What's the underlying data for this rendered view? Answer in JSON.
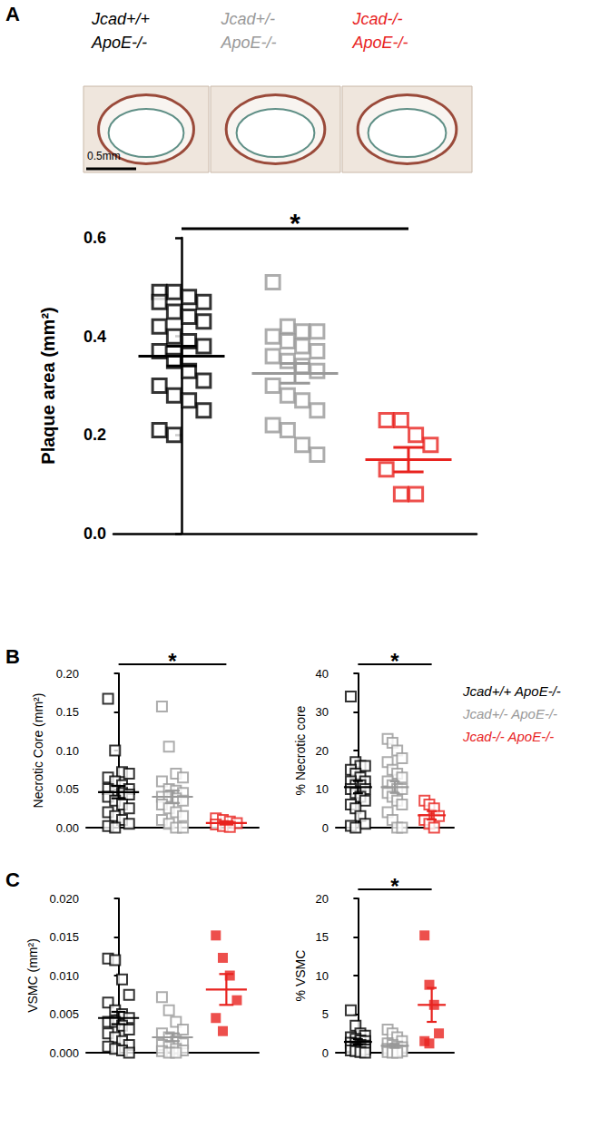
{
  "figure": {
    "panels": [
      "A",
      "B",
      "C"
    ],
    "scale_bar": "0.5mm"
  },
  "chart_data": [
    {
      "type": "scatter",
      "ylabel": "Plaque area (mm²)",
      "ylim": [
        0,
        0.6
      ],
      "yticks": [
        {
          "value": 0,
          "label": "0.0"
        },
        0.2,
        0.4,
        0.6
      ],
      "tick_labels": "y",
      "significance": [
        {
          "from": 0,
          "to": 2,
          "label": "*"
        }
      ],
      "series": [
        {
          "name": "Jcad+/+ ApoE-/-",
          "color": "#000000",
          "marker": "square",
          "values": [
            0.49,
            0.49,
            0.48,
            0.47,
            0.47,
            0.45,
            0.44,
            0.43,
            0.42,
            0.4,
            0.39,
            0.38,
            0.37,
            0.35,
            0.33,
            0.31,
            0.3,
            0.28,
            0.27,
            0.25,
            0.21,
            0.2
          ],
          "mean": 0.36,
          "sem": 0.02
        },
        {
          "name": "Jcad+/- ApoE-/-",
          "color": "#999999",
          "marker": "square",
          "values": [
            0.51,
            0.42,
            0.41,
            0.41,
            0.4,
            0.39,
            0.38,
            0.37,
            0.36,
            0.35,
            0.34,
            0.33,
            0.3,
            0.28,
            0.27,
            0.25,
            0.22,
            0.21,
            0.18,
            0.16
          ],
          "mean": 0.325,
          "sem": 0.02
        },
        {
          "name": "Jcad-/- ApoE-/-",
          "color": "#e8231f",
          "marker": "square",
          "values": [
            0.23,
            0.23,
            0.2,
            0.18,
            0.13,
            0.08,
            0.08
          ],
          "mean": 0.15,
          "sem": 0.025
        }
      ]
    },
    {
      "type": "scatter",
      "ylabel": "Necrotic Core (mm²)",
      "ylim": [
        0,
        0.2
      ],
      "yticks": [
        {
          "value": 0,
          "label": "0.00"
        },
        {
          "value": 0.05,
          "label": "0.05"
        },
        {
          "value": 0.1,
          "label": "0.10"
        },
        {
          "value": 0.15,
          "label": "0.15"
        },
        {
          "value": 0.2,
          "label": "0.20"
        }
      ],
      "tick_labels": "y",
      "significance": [
        {
          "from": 0,
          "to": 2,
          "label": "*"
        }
      ],
      "series": [
        {
          "name": "Jcad+/+ ApoE-/-",
          "color": "#000000",
          "marker": "square",
          "values": [
            0.167,
            0.1,
            0.072,
            0.07,
            0.065,
            0.06,
            0.055,
            0.05,
            0.05,
            0.048,
            0.045,
            0.043,
            0.04,
            0.035,
            0.03,
            0.025,
            0.02,
            0.015,
            0.01,
            0.005,
            0.002,
            0.0
          ],
          "mean": 0.046,
          "sem": 0.008
        },
        {
          "name": "Jcad+/- ApoE-/-",
          "color": "#999999",
          "marker": "square",
          "values": [
            0.157,
            0.105,
            0.07,
            0.065,
            0.06,
            0.05,
            0.048,
            0.045,
            0.04,
            0.04,
            0.038,
            0.035,
            0.03,
            0.025,
            0.02,
            0.015,
            0.01,
            0.005,
            0.0,
            0.0
          ],
          "mean": 0.04,
          "sem": 0.008
        },
        {
          "name": "Jcad-/- ApoE-/-",
          "color": "#e8231f",
          "marker": "square",
          "values": [
            0.012,
            0.01,
            0.008,
            0.006,
            0.004,
            0.002,
            0.001
          ],
          "mean": 0.006,
          "sem": 0.002
        }
      ]
    },
    {
      "type": "scatter",
      "ylabel": "% Necrotic core",
      "ylim": [
        0,
        40
      ],
      "yticks": [
        0,
        10,
        20,
        30,
        40
      ],
      "tick_labels": "y",
      "legend": "right",
      "significance": [
        {
          "from": 0,
          "to": 2,
          "label": "*"
        }
      ],
      "series": [
        {
          "name": "Jcad+/+ ApoE-/-",
          "color": "#000000",
          "marker": "square",
          "values": [
            34,
            17,
            16,
            16,
            15,
            14,
            13,
            12,
            12,
            11,
            11,
            10,
            10,
            9,
            8,
            7,
            6,
            5,
            3,
            1,
            0.5,
            0
          ],
          "mean": 10.5,
          "sem": 1.6
        },
        {
          "name": "Jcad+/- ApoE-/-",
          "color": "#999999",
          "marker": "square",
          "values": [
            23,
            22,
            20,
            18,
            17,
            15,
            14,
            13,
            12,
            11,
            10,
            10,
            9,
            8,
            7,
            6,
            4,
            2,
            0,
            0
          ],
          "mean": 10.5,
          "sem": 1.5
        },
        {
          "name": "Jcad-/- ApoE-/-",
          "color": "#e8231f",
          "marker": "square",
          "values": [
            7,
            6,
            5,
            3,
            2,
            1,
            0
          ],
          "mean": 3.2,
          "sem": 1.1
        }
      ]
    },
    {
      "type": "scatter",
      "ylabel": "VSMC (mm²)",
      "ylim": [
        0,
        0.02
      ],
      "yticks": [
        {
          "value": 0,
          "label": "0.000"
        },
        {
          "value": 0.005,
          "label": "0.005"
        },
        {
          "value": 0.01,
          "label": "0.010"
        },
        {
          "value": 0.015,
          "label": "0.015"
        },
        {
          "value": 0.02,
          "label": "0.020"
        }
      ],
      "tick_labels": "y",
      "series": [
        {
          "name": "Jcad+/+ ApoE-/-",
          "color": "#000000",
          "marker": "square",
          "values": [
            0.0122,
            0.012,
            0.0095,
            0.0075,
            0.0065,
            0.0055,
            0.005,
            0.0045,
            0.004,
            0.004,
            0.0035,
            0.003,
            0.0025,
            0.002,
            0.0015,
            0.001,
            0.0008,
            0.0005,
            0.0003,
            0.0
          ],
          "mean": 0.0045,
          "sem": 0.0008
        },
        {
          "name": "Jcad+/- ApoE-/-",
          "color": "#999999",
          "marker": "square",
          "values": [
            0.0072,
            0.0055,
            0.004,
            0.003,
            0.0025,
            0.002,
            0.0015,
            0.0012,
            0.001,
            0.0008,
            0.0005,
            0.0003,
            0.0002,
            0.0,
            0.0
          ],
          "mean": 0.002,
          "sem": 0.0005
        },
        {
          "name": "Jcad-/- ApoE-/-",
          "color": "#e8231f",
          "marker": "filled_square",
          "values": [
            0.0152,
            0.0123,
            0.01,
            0.0068,
            0.0045,
            0.0028
          ],
          "mean": 0.0082,
          "sem": 0.002
        }
      ]
    },
    {
      "type": "scatter",
      "ylabel": "% VSMC",
      "ylim": [
        0,
        20
      ],
      "yticks": [
        0,
        5,
        10,
        15,
        20
      ],
      "tick_labels": "y",
      "significance": [
        {
          "from": 0,
          "to": 2,
          "label": "*"
        }
      ],
      "series": [
        {
          "name": "Jcad+/+ ApoE-/-",
          "color": "#000000",
          "marker": "square",
          "values": [
            5.5,
            3.5,
            2.5,
            2.2,
            2,
            1.8,
            1.6,
            1.5,
            1.3,
            1.2,
            1,
            0.9,
            0.8,
            0.6,
            0.5,
            0.4,
            0.3,
            0.2,
            0.1,
            0
          ],
          "mean": 1.4,
          "sem": 0.35
        },
        {
          "name": "Jcad+/- ApoE-/-",
          "color": "#999999",
          "marker": "square",
          "values": [
            3,
            2.5,
            2,
            1.5,
            1.2,
            1,
            0.8,
            0.7,
            0.5,
            0.4,
            0.3,
            0.2,
            0.1,
            0,
            0
          ],
          "mean": 0.9,
          "sem": 0.25
        },
        {
          "name": "Jcad-/- ApoE-/-",
          "color": "#e8231f",
          "marker": "filled_square",
          "values": [
            15.2,
            8.8,
            6.2,
            2.5,
            1.5,
            1.2
          ],
          "mean": 6.2,
          "sem": 2.2
        }
      ]
    }
  ]
}
